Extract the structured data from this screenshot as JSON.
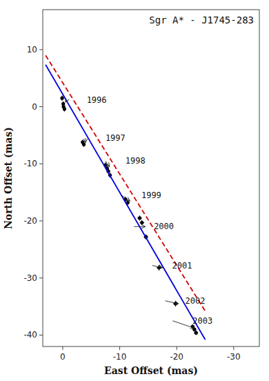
{
  "chart_data": {
    "type": "scatter",
    "title": "Sgr A* - J1745-283",
    "x_label": "East Offset (mas)",
    "y_label": "North Offset (mas)",
    "xlim": [
      3.5,
      -34.5
    ],
    "ylim": [
      -42,
      17
    ],
    "xticks": [
      0,
      -10,
      -20,
      -30
    ],
    "yticks": [
      10,
      0,
      -10,
      -20,
      -30,
      -40
    ],
    "series": [
      {
        "type": "scatter",
        "color": "#000000",
        "marker": "circle",
        "x": [
          0.1,
          -0.1,
          -0.15,
          -0.3
        ],
        "values": [
          1.5,
          0.5,
          0.0,
          -0.4
        ],
        "x_errors": [
          0.28,
          0.28,
          0.28,
          0.28
        ],
        "errors": [
          0.45,
          0.45,
          0.45,
          0.45
        ]
      },
      {
        "type": "scatter",
        "color": "#000000",
        "marker": "circle",
        "x": [
          -3.5,
          -3.7
        ],
        "values": [
          -6.2,
          -6.6
        ],
        "x_errors": [
          0.32,
          0.32
        ],
        "errors": [
          0.45,
          0.45
        ]
      },
      {
        "type": "scatter",
        "color": "#000000",
        "marker": "circle",
        "x": [
          -7.5,
          -7.8,
          -8.0,
          -8.3
        ],
        "values": [
          -10.2,
          -10.8,
          -11.3,
          -12.0
        ],
        "x_errors": [
          0.32,
          0.32,
          0.32,
          0.32
        ],
        "errors": [
          0.45,
          0.45,
          0.45,
          0.45
        ]
      },
      {
        "type": "scatter",
        "color": "#000000",
        "marker": "circle",
        "x": [
          -11.0,
          -11.4
        ],
        "values": [
          -16.2,
          -16.8
        ],
        "x_errors": [
          0.35,
          0.35
        ],
        "errors": [
          0.45,
          0.45
        ]
      },
      {
        "type": "scatter",
        "color": "#000000",
        "marker": "circle",
        "x": [
          -13.5,
          -13.9,
          -14.6
        ],
        "values": [
          -19.5,
          -20.3,
          -22.8
        ],
        "x_errors": [
          0.4,
          0.4,
          0.4
        ],
        "errors": [
          0.45,
          0.45,
          0.45
        ]
      },
      {
        "type": "scatter",
        "color": "#000000",
        "marker": "circle",
        "x": [
          -16.9
        ],
        "values": [
          -28.2
        ],
        "x_errors": [
          0.45
        ],
        "errors": [
          0.5
        ]
      },
      {
        "type": "scatter",
        "color": "#000000",
        "marker": "circle",
        "x": [
          -19.8
        ],
        "values": [
          -34.5
        ],
        "x_errors": [
          0.45
        ],
        "errors": [
          0.5
        ]
      },
      {
        "type": "scatter",
        "color": "#000000",
        "marker": "circle",
        "x": [
          -22.8,
          -23.1,
          -23.4
        ],
        "values": [
          -38.5,
          -39.0,
          -39.6
        ],
        "x_errors": [
          0.35,
          0.35,
          0.35
        ],
        "errors": [
          0.4,
          0.4,
          0.4
        ]
      },
      {
        "type": "line",
        "color": "#0000dd",
        "line_style": "solid",
        "x": [
          3.0,
          -25.0
        ],
        "values": [
          7.36,
          -40.8
        ]
      },
      {
        "type": "line",
        "color": "#cc0000",
        "line_style": "dashed",
        "x": [
          3.0,
          -25.0
        ],
        "values": [
          9.0,
          -35.8
        ]
      }
    ],
    "annotations": [
      {
        "text": "1996",
        "x": -4.2,
        "y": 1.2,
        "arrow_from": [
          -0.7,
          1.2
        ],
        "arrow_to": [
          -0.5,
          0.8
        ]
      },
      {
        "text": "1997",
        "x": -7.5,
        "y": -5.5,
        "arrow_from": [
          -4.0,
          -5.5
        ],
        "arrow_to": [
          -4.0,
          -6.3
        ]
      },
      {
        "text": "1998",
        "x": -11.0,
        "y": -9.5,
        "arrow_from": [
          -7.5,
          -9.5
        ],
        "arrow_to": [
          -8.2,
          -10.5
        ]
      },
      {
        "text": "1999",
        "x": -13.8,
        "y": -15.5,
        "arrow_from": [
          -10.3,
          -15.5
        ],
        "arrow_to": [
          -11.8,
          -16.5
        ]
      },
      {
        "text": "2000",
        "x": -16.0,
        "y": -21.0,
        "arrow_from": [
          -12.5,
          -21.0
        ],
        "arrow_to": [
          -14.5,
          -21.0
        ]
      },
      {
        "text": "2001",
        "x": -19.2,
        "y": -27.8,
        "arrow_from": [
          -15.7,
          -27.8
        ],
        "arrow_to": [
          -17.5,
          -28.2
        ]
      },
      {
        "text": "2002",
        "x": -21.5,
        "y": -34.0,
        "arrow_from": [
          -18.0,
          -34.0
        ],
        "arrow_to": [
          -20.3,
          -34.5
        ]
      },
      {
        "text": "2003",
        "x": -22.8,
        "y": -37.5,
        "arrow_from": [
          -19.3,
          -37.5
        ],
        "arrow_to": [
          -23.1,
          -38.8
        ]
      }
    ]
  }
}
